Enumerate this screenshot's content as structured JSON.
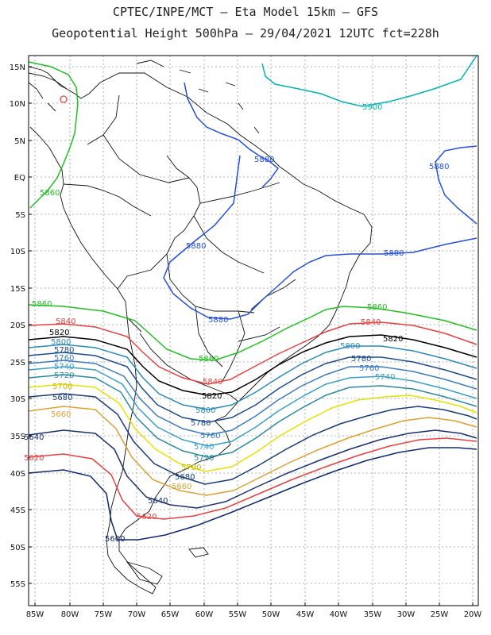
{
  "header": {
    "line1": "CPTEC/INPE/MCT –  Eta Model 15km – GFS",
    "line2": "Geopotential Height 500hPa – 29/04/2021 12UTC fct=228h"
  },
  "map": {
    "lat_ticks": [
      "15N",
      "10N",
      "5N",
      "EQ",
      "5S",
      "10S",
      "15S",
      "20S",
      "25S",
      "30S",
      "35S",
      "40S",
      "45S",
      "50S",
      "55S"
    ],
    "lon_ticks": [
      "85W",
      "80W",
      "75W",
      "70W",
      "65W",
      "60W",
      "55W",
      "50W",
      "45W",
      "40W",
      "35W",
      "30W",
      "25W",
      "20W"
    ],
    "extent": {
      "lon": [
        -86,
        -19
      ],
      "lat": [
        16,
        -58
      ]
    },
    "grid": true,
    "contours": [
      {
        "value": "5900",
        "color": "#00b4b4"
      },
      {
        "value": "5880",
        "color": "#2450dc"
      },
      {
        "value": "5860",
        "color": "#20c020"
      },
      {
        "value": "5840",
        "color": "#e84040"
      },
      {
        "value": "5820",
        "color": "#000000"
      },
      {
        "value": "5800",
        "color": "#2a8ab8"
      },
      {
        "value": "5780",
        "color": "#1e4c8c"
      },
      {
        "value": "5760",
        "color": "#3c7cc0"
      },
      {
        "value": "5740",
        "color": "#3aa0c8"
      },
      {
        "value": "5720",
        "color": "#2c88a0"
      },
      {
        "value": "5700",
        "color": "#e8e000"
      },
      {
        "value": "5680",
        "color": "#1a3c78"
      },
      {
        "value": "5660",
        "color": "#e0a030"
      },
      {
        "value": "5640",
        "color": "#1a3070"
      },
      {
        "value": "5620",
        "color": "#e84040"
      },
      {
        "value": "5600",
        "color": "#102870"
      }
    ],
    "colors": {
      "coast": "#111111",
      "grid": "#9a9a9a",
      "frame": "#000000"
    }
  }
}
